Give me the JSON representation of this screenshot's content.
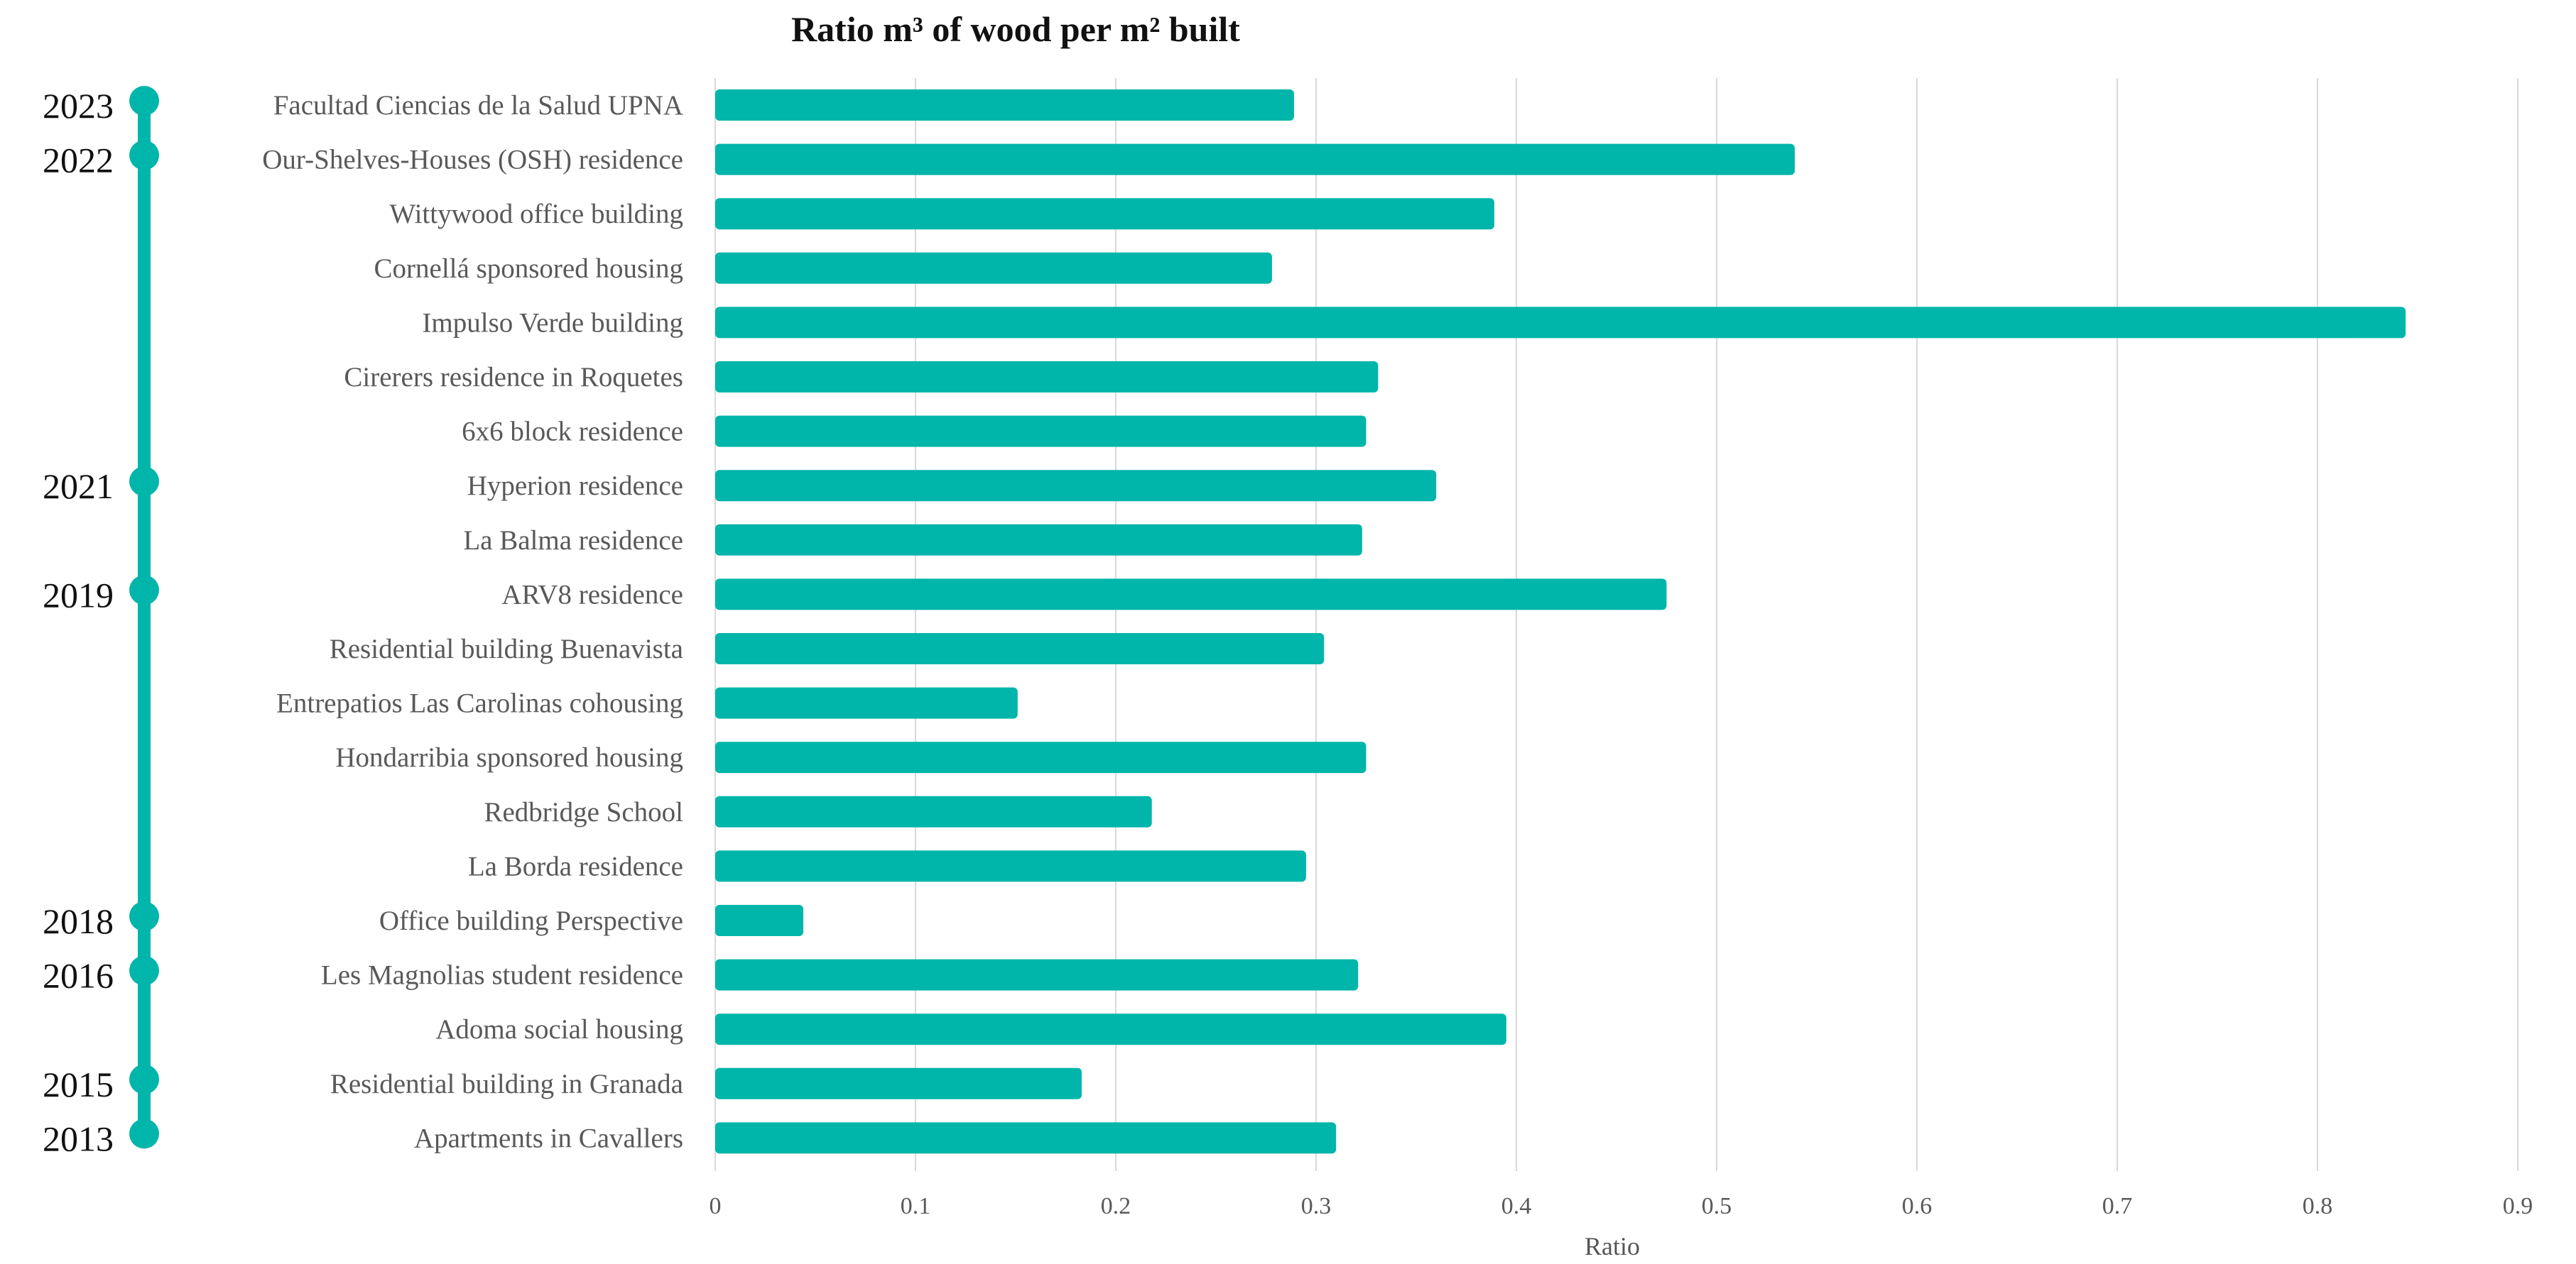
{
  "chart_data": {
    "type": "bar",
    "orientation": "horizontal",
    "title": "Ratio m³ of wood per m² built",
    "xlabel": "Ratio",
    "ylabel": "",
    "xlim": [
      0,
      0.9
    ],
    "x_ticks": [
      0,
      0.1,
      0.2,
      0.3,
      0.4,
      0.5,
      0.6,
      0.7,
      0.8,
      0.9
    ],
    "x_tick_labels": [
      "0",
      "0.1",
      "0.2",
      "0.3",
      "0.4",
      "0.5",
      "0.6",
      "0.7",
      "0.8",
      "0.9"
    ],
    "grid": "vertical",
    "bar_color": "#00b5aa",
    "categories": [
      "Facultad Ciencias de la Salud UPNA",
      "Our-Shelves-Houses (OSH) residence",
      "Wittywood office building",
      "Cornellá sponsored housing",
      "Impulso Verde building",
      "Cirerers residence in Roquetes",
      "6x6 block residence",
      "Hyperion residence",
      "La Balma residence",
      "ARV8 residence",
      "Residential building Buenavista",
      "Entrepatios Las Carolinas cohousing",
      "Hondarribia sponsored housing",
      "Redbridge School",
      "La Borda residence",
      "Office building Perspective",
      "Les Magnolias student residence",
      "Adoma social housing",
      "Residential building in Granada",
      "Apartments in Cavallers"
    ],
    "values": [
      0.289,
      0.539,
      0.389,
      0.278,
      0.844,
      0.331,
      0.325,
      0.36,
      0.323,
      0.475,
      0.304,
      0.151,
      0.325,
      0.218,
      0.295,
      0.044,
      0.321,
      0.395,
      0.183,
      0.31
    ],
    "timeline": {
      "color": "#00b5aa",
      "markers": [
        {
          "year": "2023",
          "row": 0
        },
        {
          "year": "2022",
          "row": 1
        },
        {
          "year": "2021",
          "row": 7
        },
        {
          "year": "2019",
          "row": 9
        },
        {
          "year": "2018",
          "row": 15
        },
        {
          "year": "2016",
          "row": 16
        },
        {
          "year": "2015",
          "row": 18
        },
        {
          "year": "2013",
          "row": 19
        }
      ]
    }
  }
}
